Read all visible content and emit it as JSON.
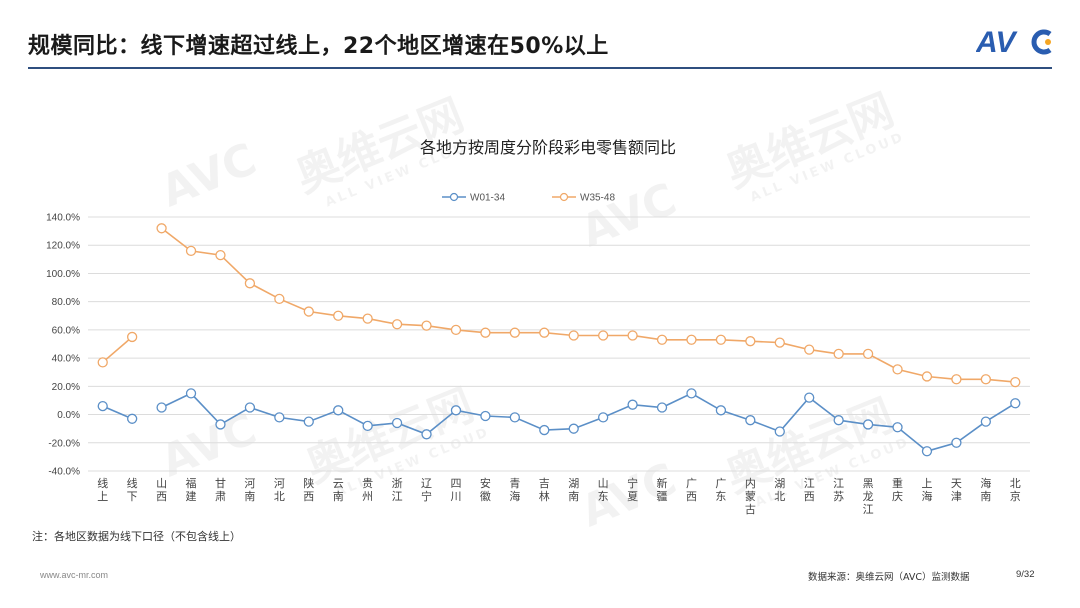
{
  "header": {
    "title": "规模同比：线下增速超过线上，22个地区增速在50%以上"
  },
  "logo": {
    "text": "AVC",
    "accent": "#f5a623",
    "color": "#2a5db0"
  },
  "watermark": {
    "brand": "奥维云网",
    "tagline": "ALL VIEW CLOUD",
    "mark": "AVC"
  },
  "footnote": "注：各地区数据为线下口径（不包含线上）",
  "footer": {
    "url": "www.avc-mr.com",
    "source": "数据来源：奥维云网（AVC）监测数据",
    "page": "9/32"
  },
  "colors": {
    "series1": "#5b8fc7",
    "series2": "#f0a868",
    "grid": "#dcdcdc",
    "rule": "#2f4f7f"
  },
  "chart_data": {
    "type": "line",
    "title": "各地方按周度分阶段彩电零售额同比",
    "legend_position": "top-center",
    "grid": true,
    "ylim": [
      -40,
      140
    ],
    "yticks": [
      "-40.0%",
      "-20.0%",
      "0.0%",
      "20.0%",
      "40.0%",
      "60.0%",
      "80.0%",
      "100.0%",
      "120.0%",
      "140.0%"
    ],
    "categories": [
      "线上",
      "线下",
      "山西",
      "福建",
      "甘肃",
      "河南",
      "河北",
      "陕西",
      "云南",
      "贵州",
      "浙江",
      "辽宁",
      "四川",
      "安徽",
      "青海",
      "吉林",
      "湖南",
      "山东",
      "宁夏",
      "新疆",
      "广西",
      "广东",
      "内蒙古",
      "湖北",
      "江西",
      "江苏",
      "黑龙江",
      "重庆",
      "上海",
      "天津",
      "海南",
      "北京"
    ],
    "segments": [
      [
        0,
        1
      ],
      [
        2,
        31
      ]
    ],
    "series": [
      {
        "name": "W01-34",
        "values": [
          6,
          -3,
          5,
          15,
          -7,
          5,
          -2,
          -5,
          3,
          -8,
          -6,
          -14,
          3,
          -1,
          -2,
          -11,
          -10,
          -2,
          7,
          5,
          15,
          3,
          -4,
          -12,
          12,
          -4,
          -7,
          -9,
          -26,
          -20,
          -5,
          8
        ]
      },
      {
        "name": "W35-48",
        "values": [
          37,
          55,
          132,
          116,
          113,
          93,
          82,
          73,
          70,
          68,
          64,
          63,
          60,
          58,
          58,
          58,
          56,
          56,
          56,
          53,
          53,
          53,
          52,
          51,
          46,
          43,
          43,
          32,
          27,
          25,
          25,
          23
        ]
      }
    ]
  }
}
